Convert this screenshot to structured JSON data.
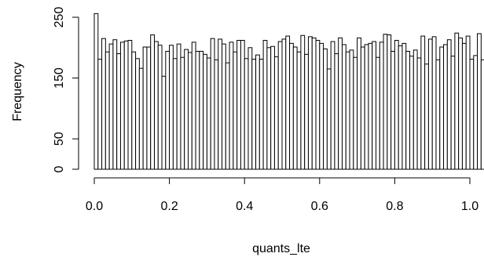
{
  "chart_data": {
    "type": "bar",
    "title": "",
    "xlabel": "quants_lte",
    "ylabel": "Frequency",
    "xlim": [
      0,
      1
    ],
    "ylim": [
      0,
      255
    ],
    "x_ticks": [
      0.0,
      0.2,
      0.4,
      0.6,
      0.8,
      1.0
    ],
    "x_tick_labels": [
      "0.0",
      "0.2",
      "0.4",
      "0.6",
      "0.8",
      "1.0"
    ],
    "y_ticks": [
      0,
      50,
      150,
      250
    ],
    "y_tick_labels": [
      "0",
      "50",
      "150",
      "250"
    ],
    "bin_width": 0.01,
    "bin_starts_at": 0,
    "values": [
      256,
      181,
      215,
      193,
      206,
      213,
      190,
      209,
      211,
      212,
      193,
      182,
      166,
      201,
      201,
      221,
      210,
      204,
      153,
      194,
      204,
      182,
      206,
      184,
      197,
      192,
      209,
      194,
      194,
      189,
      183,
      215,
      180,
      214,
      206,
      175,
      209,
      193,
      212,
      212,
      182,
      200,
      181,
      188,
      181,
      212,
      200,
      202,
      185,
      210,
      214,
      219,
      207,
      201,
      193,
      220,
      189,
      218,
      216,
      212,
      207,
      198,
      165,
      210,
      190,
      216,
      205,
      193,
      196,
      184,
      216,
      201,
      205,
      207,
      210,
      184,
      209,
      222,
      221,
      194,
      212,
      203,
      207,
      194,
      186,
      196,
      183,
      219,
      173,
      214,
      218,
      180,
      201,
      205,
      213,
      186,
      224,
      216,
      207,
      219,
      181,
      187,
      223,
      180,
      229
    ],
    "axis_color": "#000000",
    "bar_fill": "#ffffff",
    "bar_stroke": "#000000",
    "background": "#ffffff"
  }
}
